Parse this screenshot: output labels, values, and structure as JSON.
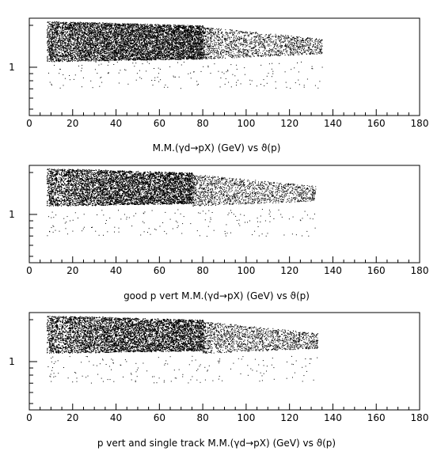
{
  "chart_data": [
    {
      "type": "scatter",
      "title": "M.M.(γd→pX) (GeV) vs ϑ(p)",
      "xlabel": "",
      "ylabel": "",
      "xlim": [
        0,
        180
      ],
      "x_ticks": [
        0,
        20,
        40,
        60,
        80,
        100,
        120,
        140,
        160,
        180
      ],
      "x_tick_labels": [
        "0",
        "20",
        "40",
        "60",
        "80",
        "100",
        "120",
        "140",
        "160",
        "180"
      ],
      "ylim": [
        0.45,
        2.25
      ],
      "y_ticks_labeled": [
        1
      ],
      "y_tick_labels": [
        "1"
      ],
      "y_scale": "log",
      "grid": false,
      "series": [
        {
          "x_range": [
            8,
            135
          ],
          "dense_core": {
            "x": [
              8,
              80
            ],
            "y": [
              1.15,
              2.15
            ]
          },
          "sparse_tail": {
            "x": [
              80,
              135
            ],
            "y": [
              1.15,
              1.95
            ]
          },
          "low_band": {
            "x": [
              8,
              135
            ],
            "y": [
              0.7,
              1.1
            ]
          }
        }
      ]
    },
    {
      "type": "scatter",
      "title": "good p vert M.M.(γd→pX) (GeV) vs ϑ(p)",
      "xlabel": "",
      "ylabel": "",
      "xlim": [
        0,
        180
      ],
      "x_ticks": [
        0,
        20,
        40,
        60,
        80,
        100,
        120,
        140,
        160,
        180
      ],
      "x_tick_labels": [
        "0",
        "20",
        "40",
        "60",
        "80",
        "100",
        "120",
        "140",
        "160",
        "180"
      ],
      "ylim": [
        0.45,
        2.25
      ],
      "y_ticks_labeled": [
        1
      ],
      "y_tick_labels": [
        "1"
      ],
      "y_scale": "log",
      "grid": false,
      "series": [
        {
          "x_range": [
            8,
            132
          ],
          "dense_core": {
            "x": [
              8,
              75
            ],
            "y": [
              1.2,
              2.15
            ]
          },
          "sparse_tail": {
            "x": [
              75,
              132
            ],
            "y": [
              1.15,
              1.95
            ]
          },
          "low_band": {
            "x": [
              8,
              132
            ],
            "y": [
              0.7,
              1.1
            ]
          }
        }
      ]
    },
    {
      "type": "scatter",
      "title": "p vert and single track M.M.(γd→pX) (GeV) vs ϑ(p)",
      "xlabel": "",
      "ylabel": "",
      "xlim": [
        0,
        180
      ],
      "x_ticks": [
        0,
        20,
        40,
        60,
        80,
        100,
        120,
        140,
        160,
        180
      ],
      "x_tick_labels": [
        "0",
        "20",
        "40",
        "60",
        "80",
        "100",
        "120",
        "140",
        "160",
        "180"
      ],
      "ylim": [
        0.45,
        2.25
      ],
      "y_ticks_labeled": [
        1
      ],
      "y_tick_labels": [
        "1"
      ],
      "y_scale": "log",
      "grid": false,
      "series": [
        {
          "x_range": [
            8,
            133
          ],
          "dense_core": {
            "x": [
              8,
              80
            ],
            "y": [
              1.2,
              2.15
            ]
          },
          "sparse_tail": {
            "x": [
              80,
              133
            ],
            "y": [
              1.15,
              1.95
            ]
          },
          "low_band": {
            "x": [
              8,
              133
            ],
            "y": [
              0.7,
              1.1
            ]
          }
        }
      ]
    }
  ]
}
